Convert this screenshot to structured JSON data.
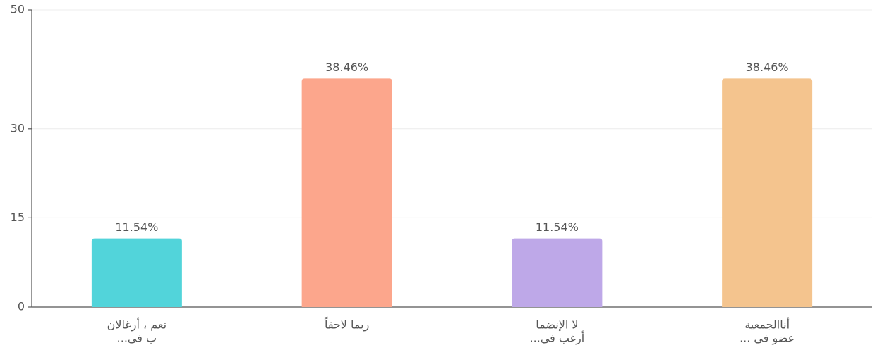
{
  "chart_data": {
    "type": "bar",
    "categories": [
      [
        "نعم ، أرغالان",
        "ب فى..."
      ],
      [
        "ربما لاحقاً"
      ],
      [
        "لا الإنضما",
        "أرغب فى..."
      ],
      [
        "أناالجمعية",
        "عضو فى ..."
      ]
    ],
    "values": [
      11.54,
      38.46,
      11.54,
      38.46
    ],
    "value_labels": [
      "11.54%",
      "38.46%",
      "11.54%",
      "38.46%"
    ],
    "colors": [
      "#52d4da",
      "#fca68c",
      "#bea8e8",
      "#f4c48e"
    ],
    "ylim": [
      0,
      50
    ],
    "yticks": [
      0,
      15,
      30,
      50
    ],
    "grid": true
  }
}
